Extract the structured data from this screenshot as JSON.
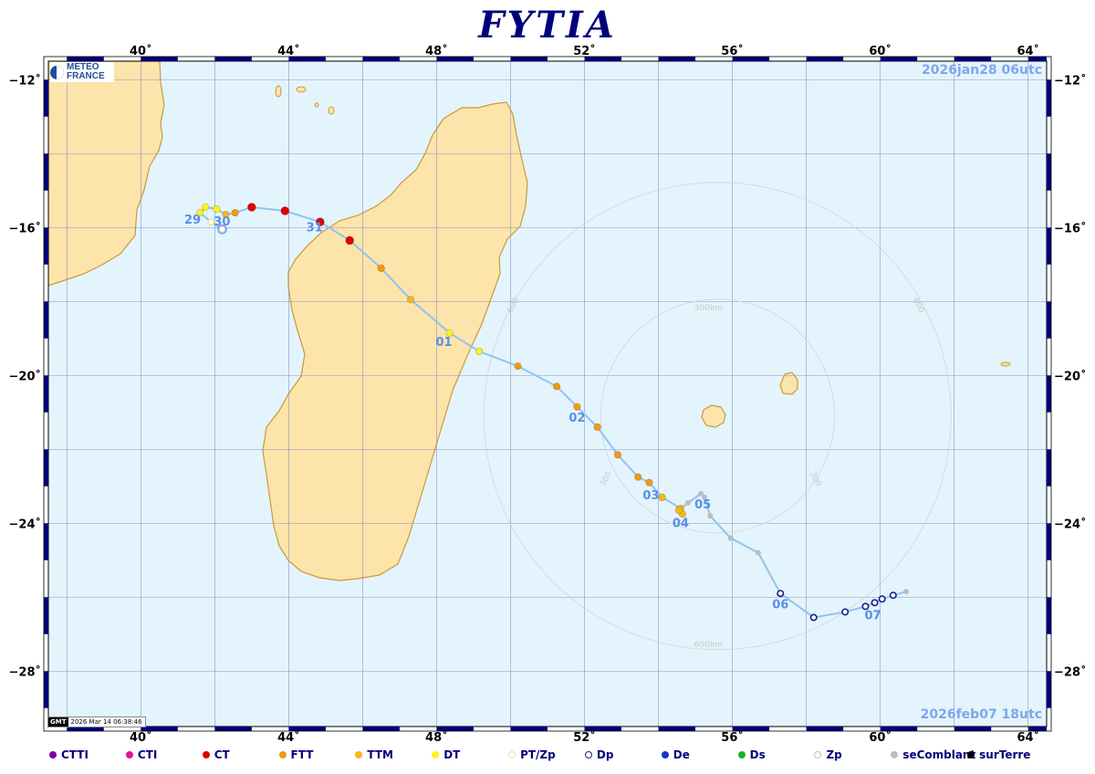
{
  "title": "FYTIA",
  "logo": {
    "line1": "METEO",
    "line2": "FRANCE"
  },
  "start_date": "2026jan28  06utc",
  "end_date": "2026feb07  18utc",
  "gmt": {
    "logo": "GMT",
    "timestamp": "2026 Mar 14 06:38:46"
  },
  "map": {
    "lon_range": [
      37.5,
      64.5
    ],
    "lat_range": [
      -29.5,
      -11.5
    ],
    "lon_ticks": [
      40,
      44,
      48,
      52,
      56,
      60,
      64
    ],
    "lat_ticks": [
      -12,
      -16,
      -20,
      -24,
      -28
    ],
    "lon_tick_labels": [
      "40˚",
      "44˚",
      "48˚",
      "52˚",
      "56˚",
      "60˚",
      "64˚"
    ],
    "lat_tick_labels": [
      "−12˚",
      "−16˚",
      "−20˚",
      "−24˚",
      "−28˚"
    ],
    "colors": {
      "ocean": "#e4f4fc",
      "land": "#fde4aa",
      "coast": "#c89a3c",
      "grid": "#8a93c8",
      "track": "#8fc4f0",
      "frame_dark": "#00007a"
    }
  },
  "rings": {
    "center": [
      55.6,
      -21.1
    ],
    "radii_km": [
      300,
      600
    ],
    "labels": [
      "300km",
      "600km",
      "300",
      "300",
      "600",
      "600"
    ]
  },
  "status_colors": {
    "CTTI": "#7a00a8",
    "CTI": "#e0109a",
    "CT": "#e00000",
    "FTT": "#f39a10",
    "TTM": "#f6b81a",
    "DT": "#fff21c",
    "PTZp": "#e8e2a0",
    "Dp": "#16208a",
    "De": "#1636c8",
    "Ds": "#22b022",
    "Zp": "#c0c0c0",
    "seComblant": "#bdbdbd",
    "surTerre": "#000000"
  },
  "track": [
    {
      "lon": 42.2,
      "lat": -16.05,
      "status": "PTZp"
    },
    {
      "lon": 41.9,
      "lat": -15.85,
      "status": "PTZp"
    },
    {
      "lon": 41.6,
      "lat": -15.6,
      "status": "DT"
    },
    {
      "lon": 41.75,
      "lat": -15.45,
      "status": "DT"
    },
    {
      "lon": 42.05,
      "lat": -15.5,
      "status": "DT"
    },
    {
      "lon": 42.3,
      "lat": -15.65,
      "status": "TTM"
    },
    {
      "lon": 42.55,
      "lat": -15.6,
      "status": "FTT"
    },
    {
      "lon": 43.0,
      "lat": -15.45,
      "status": "CT"
    },
    {
      "lon": 43.9,
      "lat": -15.55,
      "status": "CT"
    },
    {
      "lon": 44.85,
      "lat": -15.85,
      "status": "CT"
    },
    {
      "lon": 45.65,
      "lat": -16.35,
      "status": "CT"
    },
    {
      "lon": 46.5,
      "lat": -17.1,
      "status": "FTT"
    },
    {
      "lon": 47.3,
      "lat": -17.95,
      "status": "TTM"
    },
    {
      "lon": 48.35,
      "lat": -18.85,
      "status": "DT"
    },
    {
      "lon": 49.15,
      "lat": -19.35,
      "status": "DT"
    },
    {
      "lon": 50.2,
      "lat": -19.75,
      "status": "FTT"
    },
    {
      "lon": 51.25,
      "lat": -20.3,
      "status": "FTT"
    },
    {
      "lon": 51.8,
      "lat": -20.85,
      "status": "FTT"
    },
    {
      "lon": 52.35,
      "lat": -21.4,
      "status": "FTT"
    },
    {
      "lon": 52.9,
      "lat": -22.15,
      "status": "FTT"
    },
    {
      "lon": 53.45,
      "lat": -22.75,
      "status": "FTT"
    },
    {
      "lon": 53.75,
      "lat": -22.9,
      "status": "FTT"
    },
    {
      "lon": 54.1,
      "lat": -23.3,
      "status": "TTM"
    },
    {
      "lon": 54.6,
      "lat": -23.6,
      "status": "TTM"
    },
    {
      "lon": 54.65,
      "lat": -23.75,
      "status": "TTM"
    },
    {
      "lon": 54.55,
      "lat": -23.65,
      "status": "TTM"
    },
    {
      "lon": 54.8,
      "lat": -23.45,
      "status": "seComblant"
    },
    {
      "lon": 55.15,
      "lat": -23.2,
      "status": "seComblant"
    },
    {
      "lon": 55.25,
      "lat": -23.3,
      "status": "seComblant"
    },
    {
      "lon": 55.4,
      "lat": -23.8,
      "status": "seComblant"
    },
    {
      "lon": 55.95,
      "lat": -24.4,
      "status": "seComblant"
    },
    {
      "lon": 56.7,
      "lat": -24.8,
      "status": "seComblant"
    },
    {
      "lon": 57.3,
      "lat": -25.9,
      "status": "Dp"
    },
    {
      "lon": 58.2,
      "lat": -26.55,
      "status": "Dp"
    },
    {
      "lon": 59.05,
      "lat": -26.4,
      "status": "Dp"
    },
    {
      "lon": 59.6,
      "lat": -26.25,
      "status": "Dp"
    },
    {
      "lon": 59.85,
      "lat": -26.15,
      "status": "Dp"
    },
    {
      "lon": 60.05,
      "lat": -26.05,
      "status": "Dp"
    },
    {
      "lon": 60.35,
      "lat": -25.95,
      "status": "Dp"
    },
    {
      "lon": 60.7,
      "lat": -25.85,
      "status": "seComblant"
    }
  ],
  "day_labels": [
    {
      "text": "29",
      "lon": 41.4,
      "lat": -15.9
    },
    {
      "text": "30",
      "lon": 42.2,
      "lat": -15.95
    },
    {
      "text": "31",
      "lon": 44.7,
      "lat": -16.1
    },
    {
      "text": "01",
      "lon": 48.2,
      "lat": -19.2
    },
    {
      "text": "02",
      "lon": 51.8,
      "lat": -21.25
    },
    {
      "text": "03",
      "lon": 53.8,
      "lat": -23.35
    },
    {
      "text": "04",
      "lon": 54.6,
      "lat": -24.1
    },
    {
      "text": "05",
      "lon": 55.2,
      "lat": -23.6
    },
    {
      "text": "06",
      "lon": 57.3,
      "lat": -26.3
    },
    {
      "text": "07",
      "lon": 59.8,
      "lat": -26.6
    }
  ],
  "legend": [
    {
      "label": "CTTI",
      "status": "CTTI",
      "hollow": false
    },
    {
      "label": "CTI",
      "status": "CTI",
      "hollow": false
    },
    {
      "label": "CT",
      "status": "CT",
      "hollow": false
    },
    {
      "label": "FTT",
      "status": "FTT",
      "hollow": false
    },
    {
      "label": "TTM",
      "status": "TTM",
      "hollow": false
    },
    {
      "label": "DT",
      "status": "DT",
      "hollow": false
    },
    {
      "label": "PT/Zp",
      "status": "PTZp",
      "hollow": true
    },
    {
      "label": "Dp",
      "status": "Dp",
      "hollow": true
    },
    {
      "label": "De",
      "status": "De",
      "hollow": false
    },
    {
      "label": "Ds",
      "status": "Ds",
      "hollow": false
    },
    {
      "label": "Zp",
      "status": "Zp",
      "hollow": true
    },
    {
      "label": "seComblant",
      "status": "seComblant",
      "hollow": false
    },
    {
      "label": "surTerre",
      "status": "surTerre",
      "hollow": false
    }
  ],
  "places": [
    {
      "name": "mozambique-coast",
      "kind": "mainland"
    },
    {
      "name": "madagascar",
      "kind": "island"
    },
    {
      "name": "reunion",
      "kind": "island"
    },
    {
      "name": "mauritius",
      "kind": "island"
    },
    {
      "name": "comoros",
      "kind": "island"
    },
    {
      "name": "rodrigues",
      "kind": "island"
    }
  ]
}
